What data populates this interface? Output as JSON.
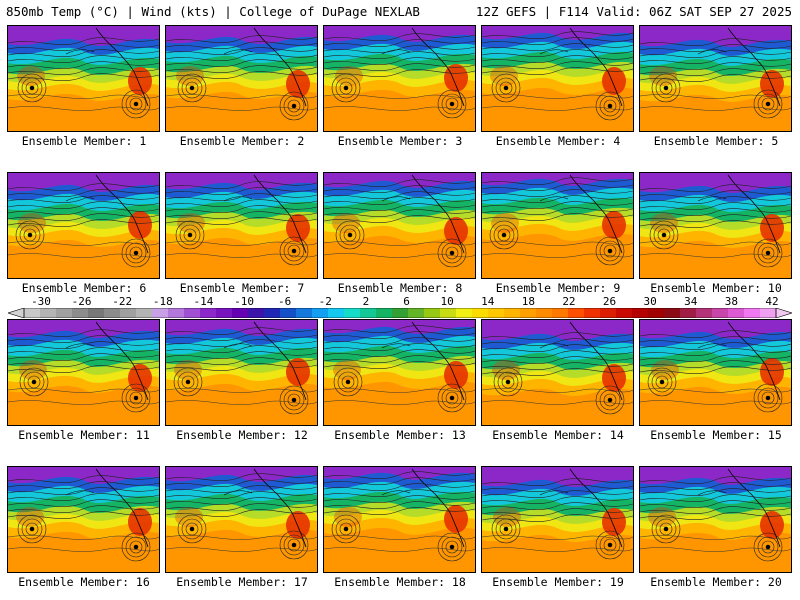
{
  "header": {
    "left": "850mb Temp (°C) | Wind (kts) | College of DuPage NEXLAB",
    "right": "12Z GEFS | F114 Valid: 06Z SAT SEP 27 2025"
  },
  "colorbar": {
    "ticks": [
      "-30",
      "-26",
      "-22",
      "-18",
      "-14",
      "-10",
      "-6",
      "-2",
      "2",
      "6",
      "10",
      "14",
      "18",
      "22",
      "26",
      "30",
      "34",
      "38",
      "42"
    ],
    "colors": [
      "#c8c8c8",
      "#b4b4b4",
      "#a0a0a0",
      "#8c8c8c",
      "#787878",
      "#8c8c8c",
      "#a0a0a0",
      "#b4b4b4",
      "#c8a0e6",
      "#b478dc",
      "#a050d2",
      "#8c28c8",
      "#7814be",
      "#6400b4",
      "#3c14aa",
      "#1e28b4",
      "#1450c8",
      "#1478dc",
      "#14a0f0",
      "#14c8f0",
      "#14dcc8",
      "#14c896",
      "#14b464",
      "#32a032",
      "#64b428",
      "#96c814",
      "#c8dc14",
      "#f0f014",
      "#ffdc00",
      "#ffc800",
      "#ffb400",
      "#ffa000",
      "#ff8c00",
      "#ff7800",
      "#ff5000",
      "#f03200",
      "#dc1e00",
      "#c80a00",
      "#b40000",
      "#a00000",
      "#8c0a14",
      "#a01e46",
      "#b43278",
      "#c846aa",
      "#dc5ad2",
      "#f078f0",
      "#f0a0f0"
    ]
  },
  "members": [
    {
      "label": "Ensemble Member: 1"
    },
    {
      "label": "Ensemble Member: 2"
    },
    {
      "label": "Ensemble Member: 3"
    },
    {
      "label": "Ensemble Member: 4"
    },
    {
      "label": "Ensemble Member: 5"
    },
    {
      "label": "Ensemble Member: 6"
    },
    {
      "label": "Ensemble Member: 7"
    },
    {
      "label": "Ensemble Member: 8"
    },
    {
      "label": "Ensemble Member: 9"
    },
    {
      "label": "Ensemble Member: 10"
    },
    {
      "label": "Ensemble Member: 11"
    },
    {
      "label": "Ensemble Member: 12"
    },
    {
      "label": "Ensemble Member: 13"
    },
    {
      "label": "Ensemble Member: 14"
    },
    {
      "label": "Ensemble Member: 15"
    },
    {
      "label": "Ensemble Member: 16"
    },
    {
      "label": "Ensemble Member: 17"
    },
    {
      "label": "Ensemble Member: 18"
    },
    {
      "label": "Ensemble Member: 19"
    },
    {
      "label": "Ensemble Member: 20"
    }
  ],
  "map_colors": {
    "cold_purple": "#8c28c8",
    "blue": "#1e5ad2",
    "cyan": "#14c8dc",
    "green": "#14b464",
    "yellow_green": "#b4dc28",
    "yellow": "#f0e614",
    "orange_light": "#ffb400",
    "orange": "#ff9600",
    "red": "#e63200"
  }
}
